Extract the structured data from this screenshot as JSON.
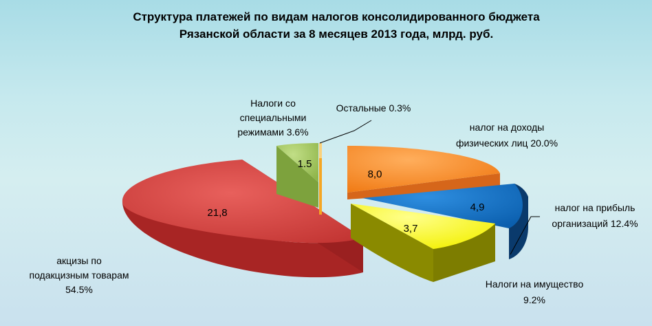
{
  "chart_data": {
    "type": "pie",
    "title": "Структура платежей по видам налогов консолидированного бюджета Рязанской области за 8 месяцев  2013 года, млрд. руб.",
    "title_lines": [
      "Структура платежей по видам налогов консолидированного бюджета",
      "Рязанской области за 8 месяцев  2013 года, млрд. руб."
    ],
    "slices": [
      {
        "label": "налог на доходы физических лиц",
        "label_lines": [
          "налог на доходы",
          "физических лиц 20.0%"
        ],
        "value": 8.0,
        "value_label": "8,0",
        "percent": 20.0,
        "color": "#f68b26"
      },
      {
        "label": "налог на прибыль организаций",
        "label_lines": [
          "налог на прибыль",
          "организаций 12.4%"
        ],
        "value": 4.9,
        "value_label": "4,9",
        "percent": 12.4,
        "color": "#0a70c8"
      },
      {
        "label": "Налоги на имущество",
        "label_lines": [
          "Налоги на имущество",
          "9.2%"
        ],
        "value": 3.7,
        "value_label": "3,7",
        "percent": 9.2,
        "color": "#ffff1e"
      },
      {
        "label": "акцизы по подакцизным товарам",
        "label_lines": [
          "акцизы по",
          "подакцизным товарам",
          "54.5%"
        ],
        "value": 21.8,
        "value_label": "21,8",
        "percent": 54.5,
        "color": "#d8403e"
      },
      {
        "label": "Налоги со специальными режимами",
        "label_lines": [
          "Налоги со",
          "специальными",
          "режимами 3.6%"
        ],
        "value": 1.5,
        "value_label": "1.5",
        "percent": 3.6,
        "color": "#a2c75c"
      },
      {
        "label": "Остальные",
        "label_lines": [
          "Остальные 0.3%"
        ],
        "value": 0.1,
        "value_label": "",
        "percent": 0.3,
        "color": "#f5a623"
      }
    ],
    "legend": "none",
    "grid": false
  }
}
